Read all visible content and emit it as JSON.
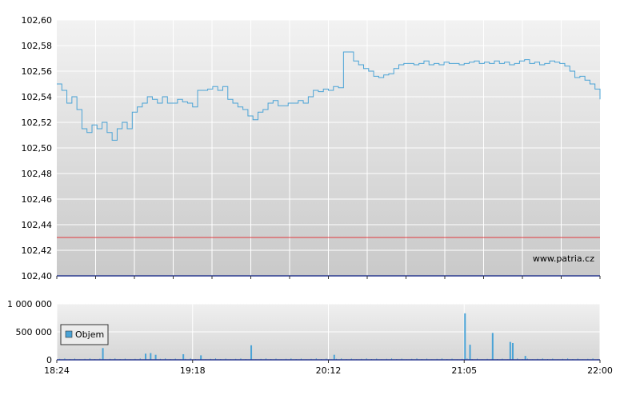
{
  "watermark": "www.patria.cz",
  "colors": {
    "price_line": "#4aa3d6",
    "reference_line": "#e0393e",
    "volume_bar": "#4aa3d6",
    "grid": "#ffffff",
    "axis": "#2a3a8f"
  },
  "chart_data": [
    {
      "type": "line",
      "title": "",
      "xlabel": "",
      "ylabel": "",
      "ylim": [
        102.4,
        102.6
      ],
      "y_ticks": [
        "102,60",
        "102,58",
        "102,56",
        "102,54",
        "102,52",
        "102,50",
        "102,48",
        "102,46",
        "102,44",
        "102,42",
        "102,40"
      ],
      "x_range": [
        "18:24",
        "22:00"
      ],
      "grid": true,
      "reference_line": 102.43,
      "series": [
        {
          "x": [
            "18:24",
            "18:26",
            "18:28",
            "18:30",
            "18:32",
            "18:34",
            "18:36",
            "18:38",
            "18:40",
            "18:42",
            "18:44",
            "18:46",
            "18:48",
            "18:50",
            "18:52",
            "18:54",
            "18:56",
            "18:58",
            "19:00",
            "19:02",
            "19:04",
            "19:06",
            "19:08",
            "19:10",
            "19:12",
            "19:14",
            "19:16",
            "19:18",
            "19:20",
            "19:22",
            "19:24",
            "19:26",
            "19:28",
            "19:30",
            "19:32",
            "19:34",
            "19:36",
            "19:38",
            "19:40",
            "19:42",
            "19:44",
            "19:46",
            "19:48",
            "19:50",
            "19:52",
            "19:54",
            "19:56",
            "19:58",
            "20:00",
            "20:02",
            "20:04",
            "20:06",
            "20:08",
            "20:10",
            "20:12",
            "20:14",
            "20:16",
            "20:18",
            "20:20",
            "20:22",
            "20:24",
            "20:26",
            "20:28",
            "20:30",
            "20:32",
            "20:34",
            "20:36",
            "20:38",
            "20:40",
            "20:42",
            "20:44",
            "20:46",
            "20:48",
            "20:50",
            "20:52",
            "20:54",
            "20:56",
            "20:58",
            "21:00",
            "21:02",
            "21:04",
            "21:06",
            "21:08",
            "21:10",
            "21:12",
            "21:14",
            "21:16",
            "21:18",
            "21:20",
            "21:22",
            "21:24",
            "21:26",
            "21:28",
            "21:30",
            "21:32",
            "21:34",
            "21:36",
            "21:38",
            "21:40",
            "21:42",
            "21:44",
            "21:46",
            "21:48",
            "21:50",
            "21:52",
            "21:54",
            "21:56",
            "21:58",
            "22:00"
          ],
          "values": [
            102.55,
            102.545,
            102.535,
            102.54,
            102.53,
            102.515,
            102.512,
            102.518,
            102.515,
            102.52,
            102.512,
            102.506,
            102.515,
            102.52,
            102.515,
            102.528,
            102.532,
            102.535,
            102.54,
            102.538,
            102.535,
            102.54,
            102.535,
            102.535,
            102.538,
            102.536,
            102.535,
            102.532,
            102.545,
            102.545,
            102.546,
            102.548,
            102.545,
            102.548,
            102.538,
            102.535,
            102.532,
            102.53,
            102.525,
            102.522,
            102.528,
            102.53,
            102.535,
            102.537,
            102.533,
            102.533,
            102.535,
            102.535,
            102.537,
            102.535,
            102.54,
            102.545,
            102.544,
            102.546,
            102.545,
            102.548,
            102.547,
            102.575,
            102.575,
            102.568,
            102.565,
            102.562,
            102.56,
            102.556,
            102.555,
            102.557,
            102.558,
            102.562,
            102.565,
            102.566,
            102.566,
            102.565,
            102.566,
            102.568,
            102.565,
            102.566,
            102.565,
            102.567,
            102.566,
            102.566,
            102.565,
            102.566,
            102.567,
            102.568,
            102.566,
            102.567,
            102.566,
            102.568,
            102.566,
            102.567,
            102.565,
            102.566,
            102.568,
            102.569,
            102.566,
            102.567,
            102.565,
            102.566,
            102.568,
            102.567,
            102.566,
            102.564,
            102.56,
            102.555,
            102.556,
            102.553,
            102.55,
            102.546,
            102.538
          ]
        }
      ]
    },
    {
      "type": "bar",
      "title": "",
      "ylim": [
        0,
        1000000
      ],
      "y_ticks": [
        "1 000 000",
        "500 000",
        "0"
      ],
      "x_ticks": [
        "18:24",
        "19:18",
        "20:12",
        "21:05",
        "22:00"
      ],
      "grid": true,
      "legend": {
        "position": "bottom-left",
        "entries": [
          "Objem"
        ]
      },
      "series": [
        {
          "name": "Objem",
          "spikes": [
            {
              "x": "18:42",
              "value": 210000
            },
            {
              "x": "18:59",
              "value": 110000
            },
            {
              "x": "19:01",
              "value": 120000
            },
            {
              "x": "19:03",
              "value": 90000
            },
            {
              "x": "19:14",
              "value": 100000
            },
            {
              "x": "19:21",
              "value": 80000
            },
            {
              "x": "19:41",
              "value": 260000
            },
            {
              "x": "20:14",
              "value": 90000
            },
            {
              "x": "21:06",
              "value": 830000
            },
            {
              "x": "21:08",
              "value": 270000
            },
            {
              "x": "21:17",
              "value": 480000
            },
            {
              "x": "21:24",
              "value": 320000
            },
            {
              "x": "21:25",
              "value": 300000
            },
            {
              "x": "21:30",
              "value": 70000
            }
          ],
          "base_value": 20000
        }
      ]
    }
  ]
}
